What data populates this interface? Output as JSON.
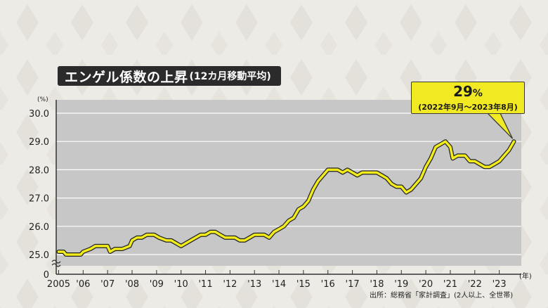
{
  "title": {
    "main": "エンゲル係数の上昇",
    "sub": "(12カ月移動平均)"
  },
  "callout": {
    "value": "29",
    "unit": "%",
    "period": "(2022年9月～2023年8月)"
  },
  "unit_label": "(%)",
  "year_suffix": "(年)",
  "source": "出所：総務省「家計調査」(2人以上、全世帯)",
  "colors": {
    "line": "#f2ec1c",
    "line_outline": "#222222",
    "plot_bg": "#c7c7c7",
    "callout_bg": "#f1ea22",
    "title_bg": "#2b2b2b"
  },
  "chart_data": {
    "type": "line",
    "title": "エンゲル係数の上昇",
    "ylabel": "(%)",
    "xlabel": "(年)",
    "y_ticks": [
      "30.0",
      "29.0",
      "28.0",
      "27.0",
      "26.0",
      "25.0",
      "0"
    ],
    "y_tick_values": [
      30,
      29,
      28,
      27,
      26,
      25,
      0
    ],
    "axis_break": true,
    "ylim": [
      25,
      30
    ],
    "x_ticks": [
      "2005",
      "'06",
      "'07",
      "'08",
      "'09",
      "'10",
      "'11",
      "'12",
      "'13",
      "'14",
      "'15",
      "'16",
      "'17",
      "'18",
      "'19",
      "'20",
      "'21",
      "'22",
      "'23"
    ],
    "x_tick_values": [
      2005,
      2006,
      2007,
      2008,
      2009,
      2010,
      2011,
      2012,
      2013,
      2014,
      2015,
      2016,
      2017,
      2018,
      2019,
      2020,
      2021,
      2022,
      2023
    ],
    "xlim": [
      2004.9,
      2023.9
    ],
    "grid": true,
    "series": [
      {
        "values": [
          [
            2005.0,
            25.1
          ],
          [
            2005.2,
            25.1
          ],
          [
            2005.3,
            25.0
          ],
          [
            2005.6,
            25.0
          ],
          [
            2005.9,
            25.0
          ],
          [
            2006.0,
            25.1
          ],
          [
            2006.3,
            25.2
          ],
          [
            2006.5,
            25.3
          ],
          [
            2006.8,
            25.3
          ],
          [
            2007.0,
            25.3
          ],
          [
            2007.1,
            25.1
          ],
          [
            2007.3,
            25.2
          ],
          [
            2007.6,
            25.2
          ],
          [
            2007.9,
            25.3
          ],
          [
            2008.0,
            25.5
          ],
          [
            2008.2,
            25.6
          ],
          [
            2008.4,
            25.6
          ],
          [
            2008.6,
            25.7
          ],
          [
            2008.9,
            25.7
          ],
          [
            2009.1,
            25.6
          ],
          [
            2009.4,
            25.5
          ],
          [
            2009.6,
            25.5
          ],
          [
            2009.8,
            25.4
          ],
          [
            2010.0,
            25.3
          ],
          [
            2010.2,
            25.4
          ],
          [
            2010.4,
            25.5
          ],
          [
            2010.6,
            25.6
          ],
          [
            2010.8,
            25.7
          ],
          [
            2011.0,
            25.7
          ],
          [
            2011.2,
            25.8
          ],
          [
            2011.4,
            25.8
          ],
          [
            2011.6,
            25.7
          ],
          [
            2011.8,
            25.6
          ],
          [
            2012.0,
            25.6
          ],
          [
            2012.2,
            25.6
          ],
          [
            2012.4,
            25.5
          ],
          [
            2012.6,
            25.5
          ],
          [
            2012.8,
            25.6
          ],
          [
            2013.0,
            25.7
          ],
          [
            2013.4,
            25.7
          ],
          [
            2013.6,
            25.6
          ],
          [
            2013.8,
            25.8
          ],
          [
            2014.0,
            25.9
          ],
          [
            2014.2,
            26.0
          ],
          [
            2014.4,
            26.2
          ],
          [
            2014.6,
            26.3
          ],
          [
            2014.8,
            26.6
          ],
          [
            2015.0,
            26.7
          ],
          [
            2015.2,
            26.9
          ],
          [
            2015.4,
            27.3
          ],
          [
            2015.6,
            27.6
          ],
          [
            2015.8,
            27.8
          ],
          [
            2016.0,
            28.0
          ],
          [
            2016.4,
            28.0
          ],
          [
            2016.6,
            27.9
          ],
          [
            2016.8,
            28.0
          ],
          [
            2017.0,
            27.9
          ],
          [
            2017.2,
            27.8
          ],
          [
            2017.4,
            27.9
          ],
          [
            2017.6,
            27.9
          ],
          [
            2017.8,
            27.9
          ],
          [
            2018.0,
            27.9
          ],
          [
            2018.2,
            27.8
          ],
          [
            2018.4,
            27.7
          ],
          [
            2018.6,
            27.5
          ],
          [
            2018.8,
            27.4
          ],
          [
            2019.0,
            27.4
          ],
          [
            2019.2,
            27.2
          ],
          [
            2019.4,
            27.3
          ],
          [
            2019.6,
            27.5
          ],
          [
            2019.8,
            27.7
          ],
          [
            2020.0,
            28.1
          ],
          [
            2020.2,
            28.4
          ],
          [
            2020.4,
            28.8
          ],
          [
            2020.6,
            28.9
          ],
          [
            2020.8,
            29.0
          ],
          [
            2021.0,
            28.8
          ],
          [
            2021.1,
            28.4
          ],
          [
            2021.3,
            28.5
          ],
          [
            2021.6,
            28.5
          ],
          [
            2021.8,
            28.3
          ],
          [
            2022.0,
            28.3
          ],
          [
            2022.2,
            28.2
          ],
          [
            2022.4,
            28.1
          ],
          [
            2022.6,
            28.1
          ],
          [
            2022.8,
            28.2
          ],
          [
            2023.0,
            28.3
          ],
          [
            2023.2,
            28.5
          ],
          [
            2023.4,
            28.7
          ],
          [
            2023.6,
            29.0
          ]
        ]
      }
    ]
  }
}
